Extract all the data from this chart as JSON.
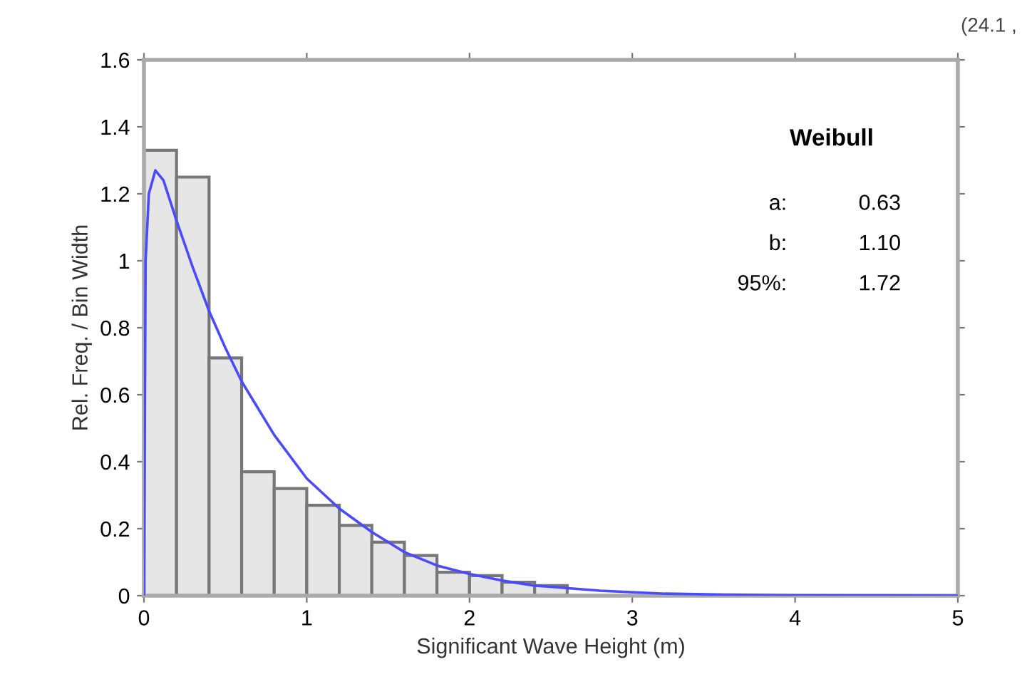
{
  "chart_data": {
    "type": "histogram",
    "xlabel": "Significant Wave Height (m)",
    "ylabel": "Rel. Freq. / Bin Width",
    "bins": [
      0,
      0.2,
      0.4,
      0.6,
      0.8,
      1.0,
      1.2,
      1.4,
      1.6,
      1.8,
      2.0,
      2.2,
      2.4,
      2.6,
      2.8,
      3.0,
      3.2
    ],
    "values": [
      1.33,
      1.25,
      0.71,
      0.37,
      0.32,
      0.27,
      0.21,
      0.16,
      0.12,
      0.07,
      0.06,
      0.04,
      0.03,
      null,
      null,
      null
    ],
    "color": "#e6e6e6",
    "series": [
      {
        "type": "line",
        "color": "#4a4aff",
        "x": [
          0,
          0.01,
          0.03,
          0.07,
          0.12,
          0.2,
          0.3,
          0.4,
          0.5,
          0.6,
          0.8,
          1.0,
          1.2,
          1.4,
          1.6,
          1.8,
          2.0,
          2.2,
          2.4,
          2.8,
          3.2,
          3.6,
          4.0,
          5.0
        ],
        "values": [
          0,
          1.0,
          1.2,
          1.27,
          1.24,
          1.12,
          0.98,
          0.85,
          0.74,
          0.64,
          0.48,
          0.35,
          0.26,
          0.19,
          0.13,
          0.09,
          0.065,
          0.045,
          0.03,
          0.015,
          0.006,
          0.003,
          0.001,
          0
        ]
      }
    ],
    "xlim": [
      0,
      5
    ],
    "xticks": [
      0,
      1,
      2,
      3,
      4,
      5
    ],
    "ylim": [
      0,
      1.6
    ],
    "yticks": [
      0,
      0.2,
      0.4,
      0.6,
      0.8,
      1,
      1.2,
      1.4,
      1.6
    ],
    "grid": false,
    "legend": false,
    "annotations": [
      "(24.1 ,",
      "Weibull",
      "a:",
      "0.63",
      "b:",
      "1.10",
      "95%:",
      "1.72"
    ]
  }
}
